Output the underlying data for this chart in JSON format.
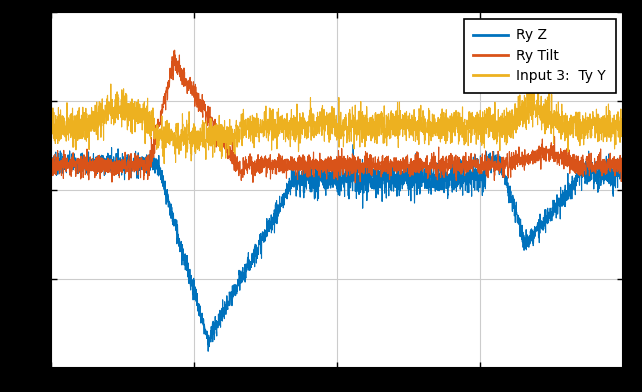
{
  "title": "",
  "legend_labels": [
    "Ry Z",
    "Ry Tilt",
    "Input 3:  Ty Y"
  ],
  "colors": [
    "#0072BD",
    "#D95319",
    "#EDB120"
  ],
  "plot_bg_color": "#FFFFFF",
  "fig_bg_color": "#000000",
  "grid_color": "#CCCCCC",
  "figsize": [
    6.42,
    3.92
  ],
  "dpi": 100,
  "n_points": 3000,
  "seed": 7
}
